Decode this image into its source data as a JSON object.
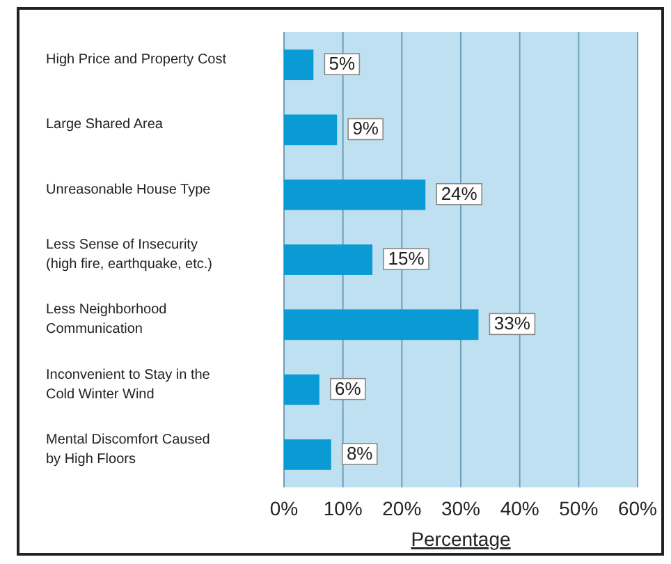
{
  "chart_data": {
    "type": "bar",
    "orientation": "horizontal",
    "xlabel": "Percentage",
    "categories": [
      "High Price and Property Cost",
      "Large Shared Area",
      "Unreasonable House Type",
      "Less Sense of Insecurity\n(high fire, earthquake, etc.)",
      "Less Neighborhood\nCommunication",
      "Inconvenient to Stay in the\nCold Winter Wind",
      "Mental Discomfort Caused\nby High Floors"
    ],
    "values": [
      5,
      9,
      24,
      15,
      33,
      6,
      8
    ],
    "value_labels": [
      "5%",
      "9%",
      "24%",
      "15%",
      "33%",
      "6%",
      "8%"
    ],
    "color": "#0a9ad4",
    "xlim": [
      0,
      60
    ],
    "xticks": [
      {
        "value": 0,
        "label": "0%"
      },
      {
        "value": 10,
        "label": "10%"
      },
      {
        "value": 20,
        "label": "20%"
      },
      {
        "value": 30,
        "label": "30%"
      },
      {
        "value": 40,
        "label": "40%"
      },
      {
        "value": 50,
        "label": "50%"
      },
      {
        "value": 60,
        "label": "60%"
      }
    ],
    "grid": "x"
  }
}
